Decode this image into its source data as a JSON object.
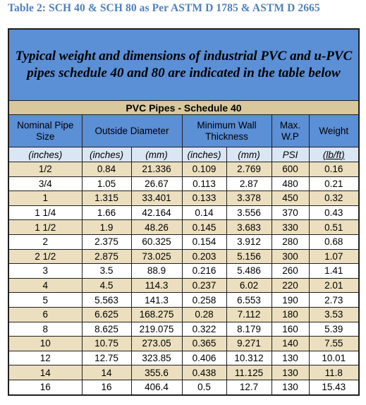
{
  "caption": "Table 2: SCH 40 & SCH 80 as Per ASTM D 1785 & ASTM D 2665",
  "intro": "Typical weight and dimensions of industrial PVC and u-PVC pipes schedule 40 and 80 are indicated in the table below",
  "section_title": "PVC Pipes - Schedule 40",
  "headers": {
    "nominal": "Nominal Pipe Size",
    "outside": "Outside Diameter",
    "wall": "Minimum Wall Thickness",
    "wp": "Max. W.P",
    "weight": "Weight"
  },
  "units": {
    "nominal": "(inches)",
    "od_in": "(inches)",
    "od_mm": "(mm)",
    "wall_in": "(inches)",
    "wall_mm": "(mm)",
    "psi": "PSI",
    "weight": "(lb/ft)"
  },
  "rows": [
    [
      "1/2",
      "0.84",
      "21.336",
      "0.109",
      "2.769",
      "600",
      "0.16"
    ],
    [
      "3/4",
      "1.05",
      "26.67",
      "0.113",
      "2.87",
      "480",
      "0.21"
    ],
    [
      "1",
      "1.315",
      "33.401",
      "0.133",
      "3.378",
      "450",
      "0.32"
    ],
    [
      "1 1/4",
      "1.66",
      "42.164",
      "0.14",
      "3.556",
      "370",
      "0.43"
    ],
    [
      "1 1/2",
      "1.9",
      "48.26",
      "0.145",
      "3.683",
      "330",
      "0.51"
    ],
    [
      "2",
      "2.375",
      "60.325",
      "0.154",
      "3.912",
      "280",
      "0.68"
    ],
    [
      "2 1/2",
      "2.875",
      "73.025",
      "0.203",
      "5.156",
      "300",
      "1.07"
    ],
    [
      "3",
      "3.5",
      "88.9",
      "0.216",
      "5.486",
      "260",
      "1.41"
    ],
    [
      "4",
      "4.5",
      "114.3",
      "0.237",
      "6.02",
      "220",
      "2.01"
    ],
    [
      "5",
      "5.563",
      "141.3",
      "0.258",
      "6.553",
      "190",
      "2.73"
    ],
    [
      "6",
      "6.625",
      "168.275",
      "0.28",
      "7.112",
      "180",
      "3.53"
    ],
    [
      "8",
      "8.625",
      "219.075",
      "0.322",
      "8.179",
      "160",
      "5.39"
    ],
    [
      "10",
      "10.75",
      "273.05",
      "0.365",
      "9.271",
      "140",
      "7.55"
    ],
    [
      "12",
      "12.75",
      "323.85",
      "0.406",
      "10.312",
      "130",
      "10.01"
    ],
    [
      "14",
      "14",
      "355.6",
      "0.438",
      "11.125",
      "130",
      "11.8"
    ],
    [
      "16",
      "16",
      "406.4",
      "0.5",
      "12.7",
      "130",
      "15.43"
    ]
  ]
}
